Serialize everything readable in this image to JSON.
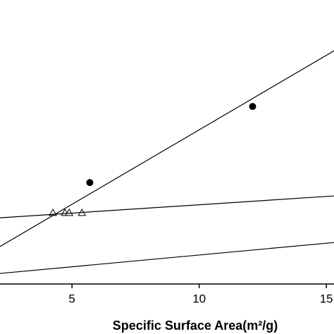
{
  "chart_data": {
    "type": "scatter",
    "x_label": "Specific Surface Area(m²/g)",
    "xlim": [
      2.17,
      15.3
    ],
    "xticks": [
      5,
      10,
      15
    ],
    "ylim": [
      0,
      100
    ],
    "series": [
      {
        "marker": "circle",
        "color": "#000000",
        "x": [
          5.7,
          12.1
        ],
        "values": [
          35.7,
          62.5
        ]
      },
      {
        "marker": "triangle",
        "color": "#000000",
        "x": [
          4.25,
          4.72,
          4.89,
          5.39
        ],
        "values": [
          25.1,
          25.1,
          25.1,
          25.1
        ]
      },
      {
        "marker": "line",
        "color": "#000000",
        "x": [
          2.17,
          15.3
        ],
        "values": [
          13.2,
          82.1
        ]
      },
      {
        "marker": "line",
        "color": "#000000",
        "x": [
          2.17,
          15.3
        ],
        "values": [
          23.3,
          31.0
        ]
      },
      {
        "marker": "line",
        "color": "#000000",
        "x": [
          2.17,
          15.3
        ],
        "values": [
          3.7,
          14.6
        ]
      }
    ]
  }
}
